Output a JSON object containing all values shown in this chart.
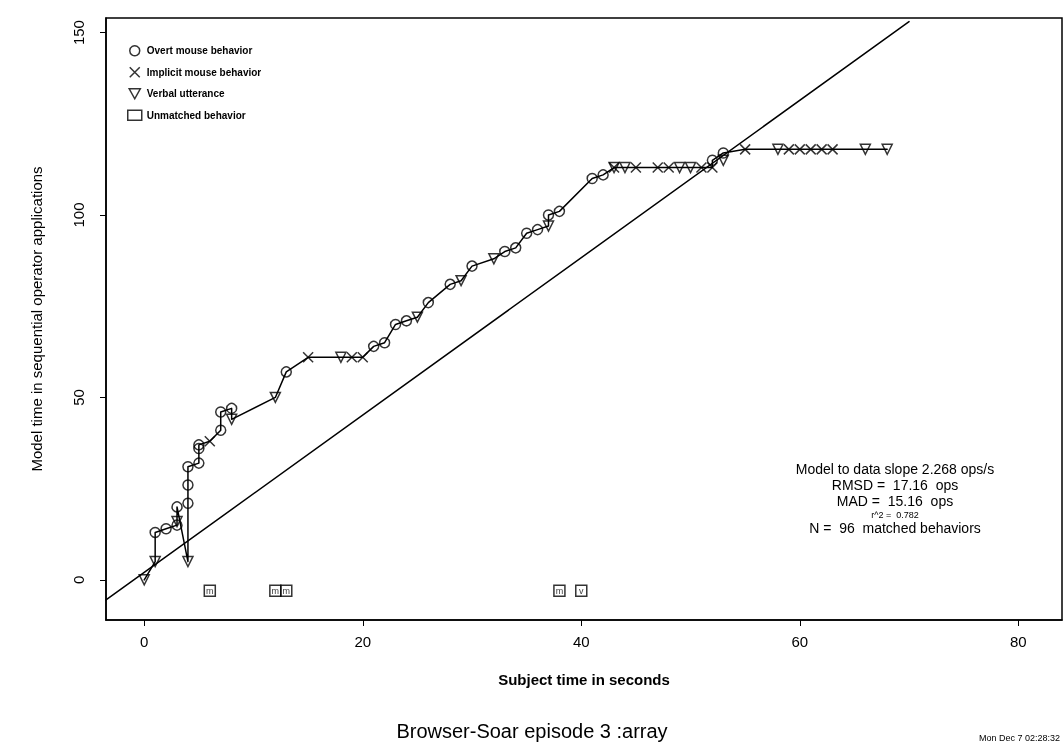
{
  "chart_data": {
    "type": "scatter",
    "title": "Browser-Soar episode 3 :array",
    "xlabel": "Subject time in seconds",
    "ylabel": "Model time in sequential operator applications",
    "xlim": [
      -3.5,
      84
    ],
    "ylim": [
      -11,
      154
    ],
    "xticks": [
      0,
      20,
      40,
      60,
      80
    ],
    "yticks": [
      0,
      50,
      100,
      150
    ],
    "grid": false,
    "legend": "top left",
    "annotations": [
      "Model to data slope 2.268 ops/s",
      "RMSD =  17.16  ops",
      "MAD =  15.16  ops",
      "r^2 =  0.782",
      "N =  96  matched behaviors",
      "Mon Dec 7 02:28:32"
    ],
    "series": [
      {
        "type": "line",
        "color": "#000000",
        "marker": "none",
        "line_style": "solid",
        "x": [
          -3.5,
          70
        ],
        "values": [
          -5.5,
          153
        ]
      },
      {
        "type": "line",
        "color": "#000000",
        "marker": "none",
        "line_style": "solid",
        "x": [
          0,
          1,
          1,
          2,
          3,
          3,
          4,
          4,
          4,
          4,
          5,
          5,
          6,
          7,
          7,
          8,
          8,
          12,
          13,
          15,
          18,
          19,
          20,
          21,
          22,
          23,
          24,
          25,
          26,
          28,
          29,
          30,
          32,
          33,
          34,
          35,
          36,
          37,
          37,
          38,
          41,
          42,
          43,
          44,
          45,
          47,
          48,
          49,
          50,
          51,
          52,
          52,
          53,
          55,
          58,
          59,
          60,
          61,
          62,
          64,
          66,
          68
        ],
        "values": [
          0,
          5,
          13,
          14,
          15,
          20,
          5,
          21,
          26,
          31,
          32,
          37,
          38,
          41,
          46,
          47,
          44,
          50,
          57,
          61,
          61,
          61,
          61,
          64,
          65,
          70,
          71,
          72,
          76,
          81,
          82,
          86,
          88,
          90,
          91,
          95,
          96,
          97,
          100,
          101,
          110,
          111,
          113,
          113,
          113,
          113,
          113,
          113,
          113,
          113,
          113,
          115,
          117,
          118,
          118,
          118,
          118,
          118,
          118,
          118,
          118,
          118
        ]
      },
      {
        "name": "Overt mouse behavior",
        "marker": "circle",
        "color": "#000000",
        "x": [
          1,
          2,
          3,
          3,
          4,
          4,
          4,
          5,
          5,
          5,
          7,
          7,
          8,
          13,
          21,
          22,
          23,
          24,
          26,
          28,
          30,
          33,
          34,
          35,
          36,
          37,
          38,
          41,
          42,
          52,
          53
        ],
        "values": [
          13,
          14,
          15,
          20,
          21,
          26,
          31,
          32,
          36,
          37,
          41,
          46,
          47,
          57,
          64,
          65,
          70,
          71,
          76,
          81,
          86,
          90,
          91,
          95,
          96,
          100,
          101,
          110,
          111,
          115,
          117
        ]
      },
      {
        "name": "Implicit mouse behavior",
        "marker": "cross",
        "color": "#000000",
        "x": [
          6,
          15,
          19,
          20,
          43,
          45,
          47,
          48,
          51,
          52,
          55,
          59,
          60,
          61,
          62,
          63
        ],
        "values": [
          38,
          61,
          61,
          61,
          113,
          113,
          113,
          113,
          113,
          113,
          118,
          118,
          118,
          118,
          118,
          118
        ]
      },
      {
        "name": "Verbal utterance",
        "marker": "triangle",
        "color": "#000000",
        "x": [
          0,
          1,
          3,
          4,
          8,
          12,
          18,
          25,
          29,
          32,
          37,
          43,
          44,
          49,
          50,
          53,
          58,
          66,
          68
        ],
        "values": [
          0,
          5,
          16,
          5,
          44,
          50,
          61,
          72,
          82,
          88,
          97,
          113,
          113,
          113,
          113,
          115,
          118,
          118,
          118
        ]
      },
      {
        "name": "Unmatched behavior",
        "marker": "square",
        "color": "#000000",
        "x": [
          6,
          12,
          13,
          38,
          40
        ],
        "values": [
          -3,
          -3,
          -3,
          -3,
          -3
        ],
        "value_labels": [
          "m",
          "m",
          "m",
          "m",
          "v"
        ]
      }
    ]
  }
}
